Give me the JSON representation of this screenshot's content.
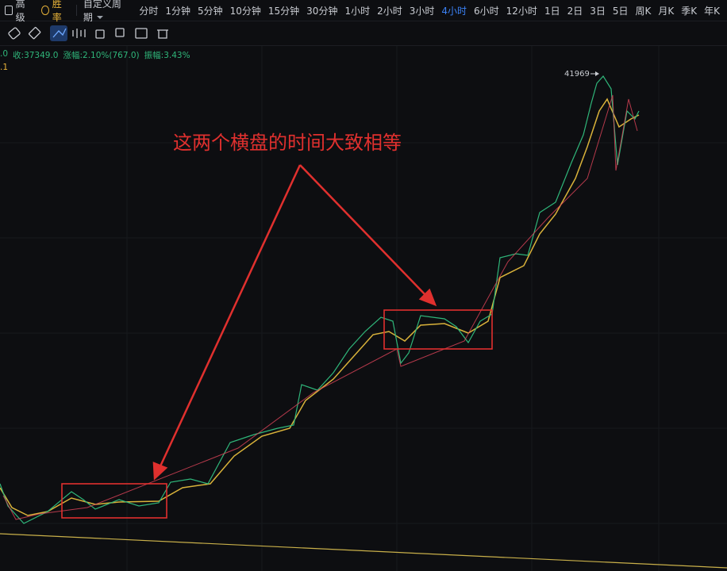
{
  "toolbar": {
    "advanced": "高级",
    "win_rate": "胜率",
    "custom_period": "自定义周期",
    "periods": [
      {
        "label": "分时"
      },
      {
        "label": "1分钟"
      },
      {
        "label": "5分钟"
      },
      {
        "label": "10分钟"
      },
      {
        "label": "15分钟"
      },
      {
        "label": "30分钟"
      },
      {
        "label": "1小时"
      },
      {
        "label": "2小时"
      },
      {
        "label": "3小时"
      },
      {
        "label": "4小时",
        "active": true
      },
      {
        "label": "6小时"
      },
      {
        "label": "12小时"
      },
      {
        "label": "1日"
      },
      {
        "label": "2日"
      },
      {
        "label": "3日"
      },
      {
        "label": "5日"
      },
      {
        "label": "周K"
      },
      {
        "label": "月K"
      },
      {
        "label": "季K"
      },
      {
        "label": "年K"
      }
    ]
  },
  "info": {
    "items": [
      {
        "text": ".0"
      },
      {
        "text": "收:37349.0"
      },
      {
        "text": "涨幅:2.10%(767.0)"
      },
      {
        "text": "振幅:3.43%"
      }
    ],
    "ma": ".1"
  },
  "chart": {
    "high_label": "41969",
    "annotation": "这两个横盘的时间大致相等"
  }
}
